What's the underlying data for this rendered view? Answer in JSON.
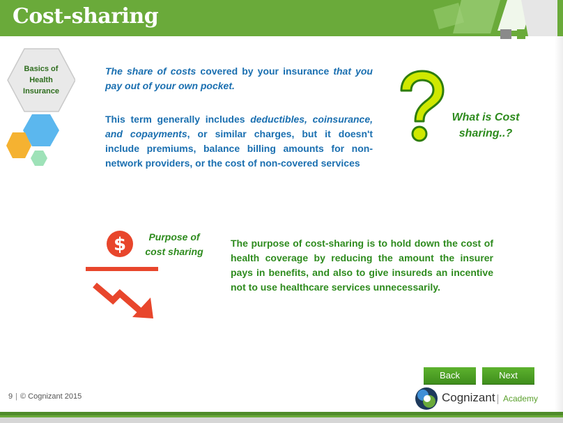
{
  "slide": {
    "title": "Cost-sharing",
    "module_badge": {
      "line1": "Basics of",
      "line2": "Health",
      "line3": "Insurance"
    }
  },
  "definition": {
    "p1_part1": "The share of costs",
    "p1_part2": " covered by your insurance ",
    "p1_part3": "that you pay out of your own pocket.",
    "p2_part1": "This term generally includes ",
    "p2_part2": "deductibles, coinsurance, and copayments",
    "p2_part3": ", or similar charges, but it doesn't include premiums, balance billing amounts for non-network providers, or the cost of non-covered services"
  },
  "question": {
    "line1": "What is Cost",
    "line2": "sharing..?"
  },
  "purpose": {
    "label_line1": "Purpose of",
    "label_line2": "cost sharing",
    "text": "The purpose of cost-sharing is to hold down the cost of health coverage by reducing the amount the insurer pays in benefits, and also to give insureds an incentive not to use healthcare services unnecessarily."
  },
  "nav": {
    "back_label": "Back",
    "next_label": "Next"
  },
  "footer": {
    "page_number": "9",
    "copyright": "© Cognizant 2015"
  },
  "logo": {
    "name": "Cognizant",
    "tagline": "Academy"
  },
  "colors": {
    "brand_green": "#6aaa3a",
    "text_blue": "#1a6fb0",
    "text_green": "#2e8b1e",
    "accent_red": "#e8462c",
    "question_yellow": "#c8e600"
  },
  "icons": [
    "hexagon-cluster-icon",
    "question-mark-icon",
    "dollar-icon",
    "trend-down-arrow-icon",
    "cognizant-logo-icon"
  ]
}
